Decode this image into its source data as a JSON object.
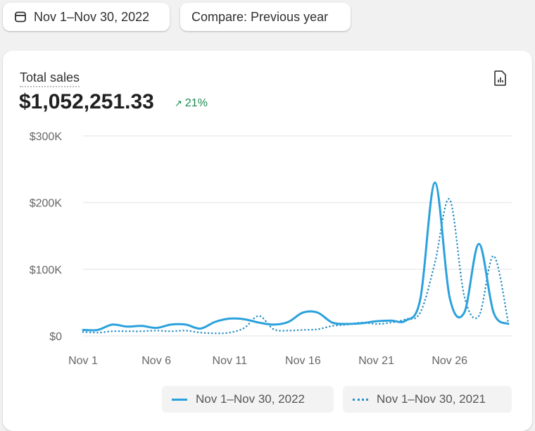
{
  "toolbar": {
    "date_range": "Nov 1–Nov 30, 2022",
    "compare": "Compare: Previous year"
  },
  "card": {
    "title": "Total sales",
    "total": "$1,052,251.33",
    "change": "21%",
    "change_direction": "up",
    "icon": "report-icon"
  },
  "colors": {
    "line": "#2ba1dc",
    "positive": "#1a8a4f"
  },
  "chart_data": {
    "type": "line",
    "title": "Total sales",
    "ylim": [
      0,
      300000
    ],
    "yticks": [
      {
        "v": 0,
        "label": "$0"
      },
      {
        "v": 100000,
        "label": "$100K"
      },
      {
        "v": 200000,
        "label": "$200K"
      },
      {
        "v": 300000,
        "label": "$300K"
      }
    ],
    "xticks": [
      {
        "d": 1,
        "label": "Nov 1"
      },
      {
        "d": 6,
        "label": "Nov 6"
      },
      {
        "d": 11,
        "label": "Nov 11"
      },
      {
        "d": 16,
        "label": "Nov 16"
      },
      {
        "d": 21,
        "label": "Nov 21"
      },
      {
        "d": 26,
        "label": "Nov 26"
      }
    ],
    "x": [
      1,
      2,
      3,
      4,
      5,
      6,
      7,
      8,
      9,
      10,
      11,
      12,
      13,
      14,
      15,
      16,
      17,
      18,
      19,
      20,
      21,
      22,
      23,
      24,
      25,
      26,
      27,
      28,
      29,
      30
    ],
    "series": [
      {
        "name": "Nov 1–Nov 30, 2022",
        "style": "solid",
        "values": [
          9000,
          9000,
          17000,
          14000,
          15000,
          12000,
          17000,
          17000,
          11000,
          21000,
          26000,
          25000,
          20000,
          17000,
          21000,
          35000,
          35000,
          20000,
          18000,
          19000,
          22000,
          23000,
          23000,
          55000,
          230000,
          58000,
          35000,
          138000,
          35000,
          18000
        ]
      },
      {
        "name": "Nov 1–Nov 30, 2021",
        "style": "dotted",
        "values": [
          6000,
          5000,
          7000,
          7000,
          7000,
          8000,
          7000,
          8000,
          5000,
          4000,
          5000,
          12000,
          30000,
          10000,
          8000,
          9000,
          10000,
          15000,
          17000,
          20000,
          18000,
          20000,
          25000,
          35000,
          110000,
          205000,
          60000,
          30000,
          120000,
          20000
        ]
      }
    ],
    "legend": "bottom"
  }
}
